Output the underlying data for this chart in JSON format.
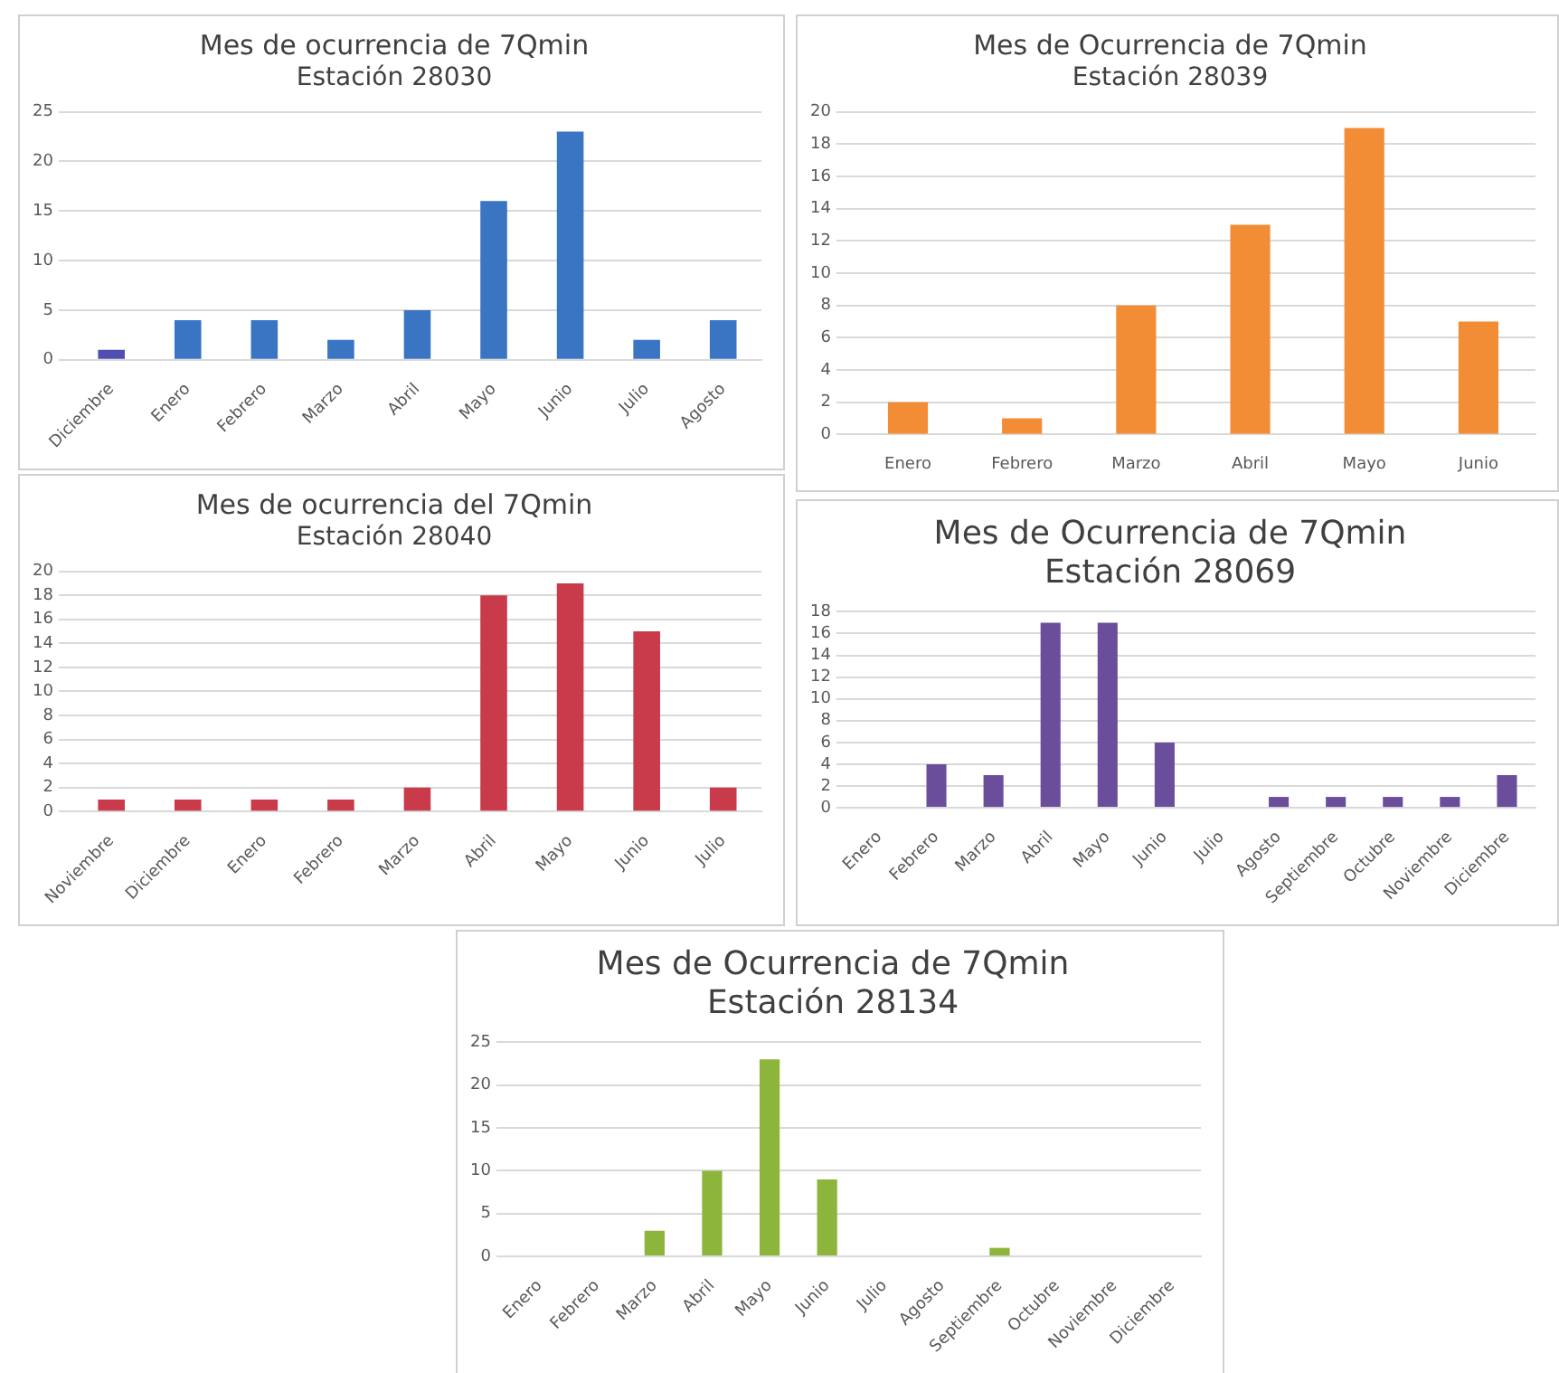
{
  "chart_data": [
    {
      "type": "bar",
      "title": "Mes de ocurrencia de 7Qmin",
      "subtitle": "Estación 28030",
      "categories": [
        "Diciembre",
        "Enero",
        "Febrero",
        "Marzo",
        "Abril",
        "Mayo",
        "Junio",
        "Julio",
        "Agosto"
      ],
      "values": [
        1,
        4,
        4,
        2,
        5,
        16,
        23,
        2,
        4
      ],
      "colors": [
        "#4e4fb0",
        "#3a75c4",
        "#3a75c4",
        "#3a75c4",
        "#3a75c4",
        "#3a75c4",
        "#3a75c4",
        "#3a75c4",
        "#3a75c4"
      ],
      "ylim": [
        0,
        25
      ],
      "yticks": [
        0,
        5,
        10,
        15,
        20,
        25
      ],
      "grid": "y"
    },
    {
      "type": "bar",
      "title": "Mes de Ocurrencia de 7Qmin",
      "subtitle": "Estación 28039",
      "categories": [
        "Enero",
        "Febrero",
        "Marzo",
        "Abril",
        "Mayo",
        "Junio"
      ],
      "values": [
        2,
        1,
        8,
        13,
        19,
        7
      ],
      "color": "#f28d35",
      "ylim": [
        0,
        20
      ],
      "yticks": [
        0,
        2,
        4,
        6,
        8,
        10,
        12,
        14,
        16,
        18,
        20
      ],
      "grid": "y"
    },
    {
      "type": "bar",
      "title": "Mes de ocurrencia del 7Qmin",
      "subtitle": "Estación 28040",
      "categories": [
        "Noviembre",
        "Diciembre",
        "Enero",
        "Febrero",
        "Marzo",
        "Abril",
        "Mayo",
        "Junio",
        "Julio"
      ],
      "values": [
        1,
        1,
        1,
        1,
        2,
        18,
        19,
        15,
        2
      ],
      "color": "#c93a4a",
      "ylim": [
        0,
        20
      ],
      "yticks": [
        0,
        2,
        4,
        6,
        8,
        10,
        12,
        14,
        16,
        18,
        20
      ],
      "grid": "y"
    },
    {
      "type": "bar",
      "title": "Mes de Ocurrencia de 7Qmin",
      "subtitle": "Estación 28069",
      "categories": [
        "Enero",
        "Febrero",
        "Marzo",
        "Abril",
        "Mayo",
        "Junio",
        "Julio",
        "Agosto",
        "Septiembre",
        "Octubre",
        "Noviembre",
        "Diciembre"
      ],
      "values": [
        0,
        4,
        3,
        17,
        17,
        6,
        0,
        1,
        1,
        1,
        1,
        3
      ],
      "color": "#6a4e9c",
      "ylim": [
        0,
        18
      ],
      "yticks": [
        0,
        2,
        4,
        6,
        8,
        10,
        12,
        14,
        16,
        18
      ],
      "grid": "y"
    },
    {
      "type": "bar",
      "title": "Mes de Ocurrencia de 7Qmin",
      "subtitle": "Estación 28134",
      "categories": [
        "Enero",
        "Febrero",
        "Marzo",
        "Abril",
        "Mayo",
        "Junio",
        "Julio",
        "Agosto",
        "Septiembre",
        "Octubre",
        "Noviembre",
        "Diciembre"
      ],
      "values": [
        0,
        0,
        3,
        10,
        23,
        9,
        0,
        0,
        1,
        0,
        0,
        0
      ],
      "color": "#8db53c",
      "ylim": [
        0,
        25
      ],
      "yticks": [
        0,
        5,
        10,
        15,
        20,
        25
      ],
      "grid": "y"
    }
  ]
}
